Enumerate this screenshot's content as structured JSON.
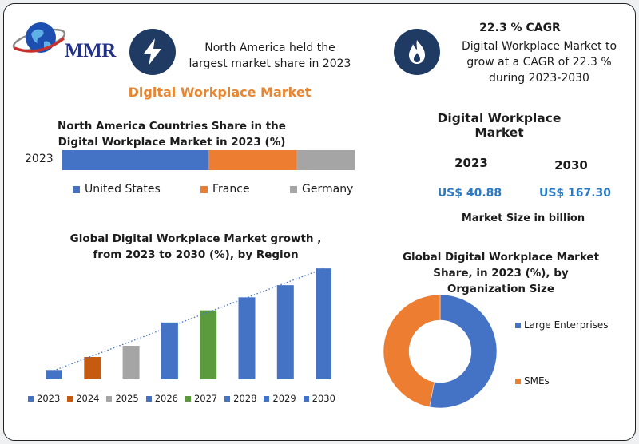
{
  "logo": {
    "text": "MMR"
  },
  "highlight_left": {
    "icon": "lightning-bolt-icon",
    "text": "North America held the largest market share in 2023"
  },
  "highlight_right": {
    "icon": "flame-icon",
    "title": "22.3 % CAGR",
    "text": "Digital Workplace Market to grow at a CAGR of 22.3 % during 2023-2030"
  },
  "main_title": "Digital Workplace Market",
  "market_size": {
    "title": "Digital Workplace Market",
    "year_a": "2023",
    "year_b": "2030",
    "value_a": "US$ 40.88",
    "value_b": "US$ 167.30",
    "caption": "Market Size in billion"
  },
  "colors": {
    "blue": "#4472c4",
    "orange": "#ed7d31",
    "gray": "#a5a5a5",
    "green": "#5b9b3d",
    "dark_orange": "#c55a11",
    "navy": "#1f3a63",
    "value_blue": "#2a7bc4"
  },
  "chart_data": [
    {
      "type": "bar",
      "orientation": "horizontal-stacked",
      "title": "North America Countries Share in the  Digital Workplace Market   in 2023 (%)",
      "categories": [
        "2023"
      ],
      "series": [
        {
          "name": "United States",
          "values": [
            50
          ],
          "color": "#4472c4"
        },
        {
          "name": "France",
          "values": [
            30
          ],
          "color": "#ed7d31"
        },
        {
          "name": "Germany",
          "values": [
            20
          ],
          "color": "#a5a5a5"
        }
      ],
      "xlim": [
        0,
        100
      ],
      "legend": "bottom"
    },
    {
      "type": "bar",
      "title": "Global Digital Workplace Market growth , from 2023 to 2030 (%), by Region",
      "categories": [
        "2023",
        "2024",
        "2025",
        "2026",
        "2027",
        "2028",
        "2029",
        "2030"
      ],
      "values": [
        1.0,
        2.4,
        3.6,
        6.1,
        7.4,
        8.8,
        10.1,
        11.9
      ],
      "colors": [
        "#4472c4",
        "#c55a11",
        "#a5a5a5",
        "#4472c4",
        "#5b9b3d",
        "#4472c4",
        "#4472c4",
        "#4472c4"
      ],
      "ylim": [
        0,
        12
      ],
      "trendline": "linear-dotted",
      "legend": "bottom"
    },
    {
      "type": "pie",
      "style": "donut",
      "title": "Global  Digital Workplace Market Share, in 2023 (%), by Organization Size",
      "categories": [
        "Large Enterprises",
        "SMEs"
      ],
      "values": [
        53,
        47
      ],
      "colors": [
        "#4472c4",
        "#ed7d31"
      ],
      "legend": "right"
    }
  ]
}
